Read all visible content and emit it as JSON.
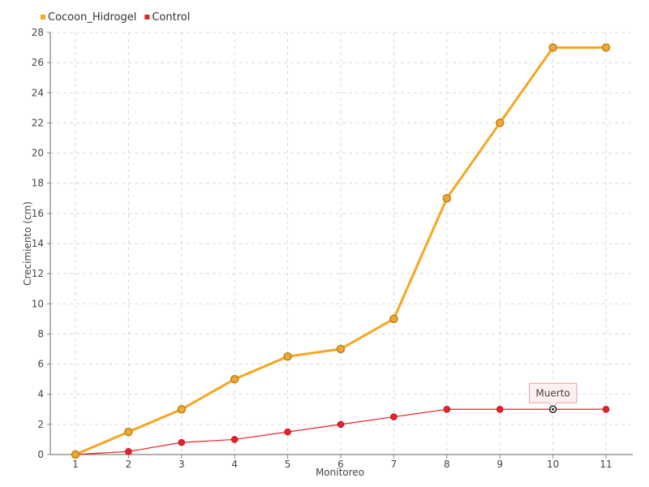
{
  "chart_data": {
    "type": "line",
    "title": "",
    "xlabel": "Monitoreo",
    "ylabel": "Crecimiento (cm)",
    "categories": [
      "1",
      "2",
      "3",
      "4",
      "5",
      "6",
      "7",
      "8",
      "9",
      "10",
      "11"
    ],
    "ylim": [
      0,
      28
    ],
    "yticks": [
      0,
      2,
      4,
      6,
      8,
      10,
      12,
      14,
      16,
      18,
      20,
      22,
      24,
      26,
      28
    ],
    "grid": true,
    "legend_position": "top-left",
    "series": [
      {
        "name": "Cocoon_Hidrogel",
        "color": "#f5a623",
        "marker_fill": "#f2a63a",
        "marker_stroke": "#b8860b",
        "values": [
          0,
          1.5,
          3,
          5,
          6.5,
          7,
          9,
          17,
          22,
          27,
          27
        ]
      },
      {
        "name": "Control",
        "color": "#e8202a",
        "marker_fill": "#e8202a",
        "marker_stroke": "#c0151c",
        "values": [
          0,
          0.2,
          0.8,
          1,
          1.5,
          2,
          2.5,
          3,
          3,
          3,
          3
        ]
      }
    ],
    "annotations": [
      {
        "text": "Muerto",
        "series": "Control",
        "x": "10",
        "y": 3
      }
    ]
  }
}
